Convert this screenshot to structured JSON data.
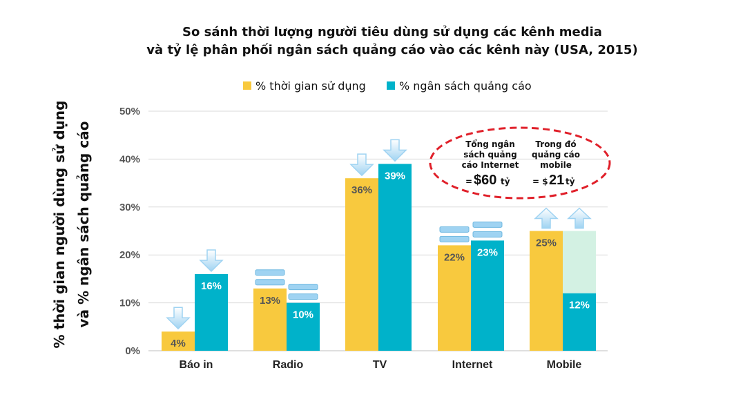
{
  "chart_data": {
    "type": "bar",
    "title_line1": "So sánh thời lượng người tiêu dùng sử dụng các kênh media",
    "title_line2": "và tỷ lệ phân phối ngân sách quảng cáo vào các kênh này (USA, 2015)",
    "ylabel_line1": "% thời gian người dùng sử dụng",
    "ylabel_line2": "và % ngân sách quảng cáo",
    "categories": [
      "Báo in",
      "Radio",
      "TV",
      "Internet",
      "Mobile"
    ],
    "series": [
      {
        "name": "% thời gian sử dụng",
        "values": [
          4,
          13,
          36,
          22,
          25
        ],
        "labels": [
          "4%",
          "13%",
          "36%",
          "22%",
          "25%"
        ],
        "color": "#F8C93E"
      },
      {
        "name": "% ngân sách quảng cáo",
        "values": [
          16,
          10,
          39,
          23,
          12
        ],
        "labels": [
          "16%",
          "10%",
          "39%",
          "23%",
          "12%"
        ],
        "color": "#00B2CA"
      }
    ],
    "mobile_gap_color": "#D3F1E3",
    "y_ticks": [
      "0%",
      "10%",
      "20%",
      "30%",
      "40%",
      "50%"
    ],
    "ylim": [
      0,
      50
    ],
    "grid": true,
    "legend_position": "top",
    "trend_markers": {
      "time": [
        "down",
        "flat",
        "down",
        "flat",
        "up"
      ],
      "budget": [
        "down",
        "flat",
        "down",
        "flat",
        "up"
      ]
    },
    "annotation": {
      "left_lines": [
        "Tổng ngân",
        "sách quảng",
        "cáo Internet"
      ],
      "left_eq": "=",
      "left_value": "$60",
      "left_unit": "tỷ",
      "right_lines": [
        "Trong đó",
        "quảng cáo",
        "mobile"
      ],
      "right_eq": "= $",
      "right_value": "21",
      "right_unit": "tỷ",
      "ellipse_color": "#E0202A"
    },
    "arrow_color": "#9FD3F2"
  }
}
